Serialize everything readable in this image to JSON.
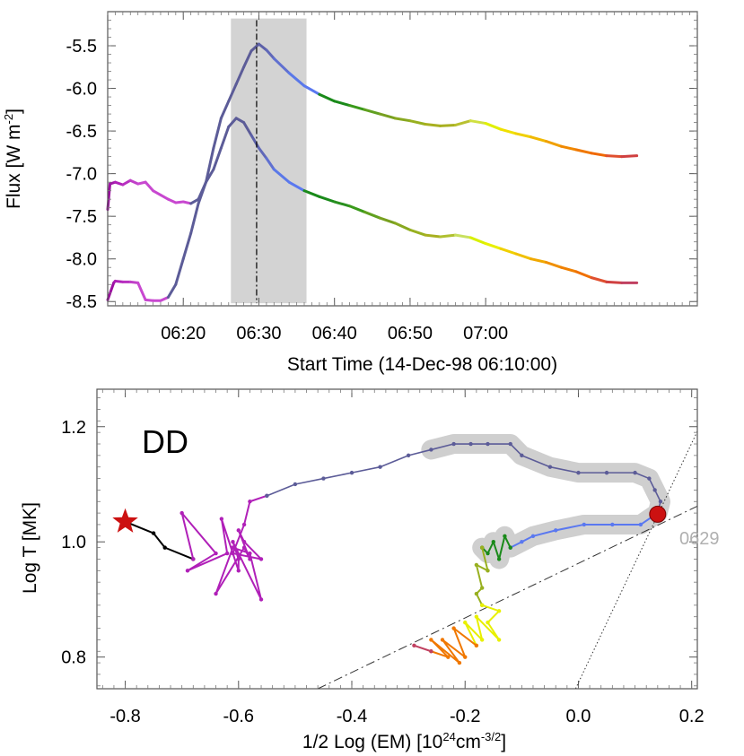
{
  "chart_data": [
    {
      "type": "line",
      "xlabel": "Start Time (14-Dec-98 06:10:00)",
      "ylabel_main": "Flux [W m",
      "ylabel_sup": "-2",
      "ylabel_close": "]",
      "xlim": [
        0,
        78
      ],
      "ylim": [
        -8.55,
        -5.1
      ],
      "x_tick_values": [
        10,
        20,
        30,
        40,
        50
      ],
      "x_tick_labels": [
        "06:20",
        "06:30",
        "06:40",
        "06:50",
        "07:00"
      ],
      "y_tick_values": [
        -5.5,
        -6.0,
        -6.5,
        -7.0,
        -7.5,
        -8.0,
        -8.5
      ],
      "y_tick_labels": [
        "-5.5",
        "-6.0",
        "-6.5",
        "-7.0",
        "-7.5",
        "-8.0",
        "-8.5"
      ],
      "shaded_interval": [
        16.3,
        26.3
      ],
      "vline_x": 19.7,
      "colors": [
        "#9c0fa0",
        "#b238c0",
        "#5c5c98",
        "#6060b8",
        "#5a78f0",
        "#1a8a1a",
        "#3a9a1a",
        "#88b020",
        "#b8c820",
        "#ccf060",
        "#f0f000",
        "#f0b000",
        "#f07800",
        "#c04060"
      ],
      "series": [
        {
          "points": [
            [
              0,
              -7.42
            ],
            [
              0.3,
              -7.12
            ],
            [
              1,
              -7.1
            ],
            [
              2,
              -7.13
            ],
            [
              3,
              -7.08
            ],
            [
              4,
              -7.12
            ],
            [
              5,
              -7.1
            ],
            [
              6,
              -7.2
            ],
            [
              7,
              -7.25
            ],
            [
              8,
              -7.3
            ],
            [
              9,
              -7.34
            ],
            [
              10,
              -7.33
            ],
            [
              11,
              -7.35
            ],
            [
              12,
              -7.3
            ],
            [
              13,
              -7.1
            ],
            [
              14,
              -6.7
            ],
            [
              15,
              -6.35
            ],
            [
              16,
              -6.15
            ],
            [
              17,
              -5.95
            ],
            [
              18,
              -5.75
            ],
            [
              19,
              -5.56
            ],
            [
              20,
              -5.48
            ],
            [
              21,
              -5.55
            ],
            [
              22,
              -5.65
            ],
            [
              24,
              -5.82
            ],
            [
              26,
              -5.97
            ],
            [
              28,
              -6.07
            ],
            [
              30,
              -6.15
            ],
            [
              32,
              -6.2
            ],
            [
              34,
              -6.25
            ],
            [
              36,
              -6.3
            ],
            [
              38,
              -6.35
            ],
            [
              40,
              -6.38
            ],
            [
              42,
              -6.42
            ],
            [
              44,
              -6.44
            ],
            [
              46,
              -6.43
            ],
            [
              48,
              -6.38
            ],
            [
              50,
              -6.41
            ],
            [
              52,
              -6.48
            ],
            [
              54,
              -6.53
            ],
            [
              56,
              -6.57
            ],
            [
              58,
              -6.62
            ],
            [
              60,
              -6.68
            ],
            [
              62,
              -6.72
            ],
            [
              64,
              -6.76
            ],
            [
              66,
              -6.79
            ],
            [
              68,
              -6.8
            ],
            [
              70,
              -6.79
            ]
          ],
          "colors": [
            "#9c0fa0",
            "#a018a8",
            "#b020b8",
            "#b830c0",
            "#c040c8",
            "#c848d0",
            "#c848d0",
            "#c848d0",
            "#c848d0",
            "#c848d0",
            "#c848d0",
            "#c848d0",
            "#5c5c98",
            "#5c5c98",
            "#5c5c98",
            "#5c5c98",
            "#5c5c98",
            "#5c5c98",
            "#5c5c98",
            "#5c5c98",
            "#5c5c98",
            "#5c60a8",
            "#6068b8",
            "#6070d0",
            "#5a78e8",
            "#5a78f0",
            "#1a8a1a",
            "#1a8a1a",
            "#3a9a1a",
            "#60a020",
            "#78a020",
            "#88a820",
            "#98b020",
            "#a8b020",
            "#a8b020",
            "#b8c030",
            "#d0e040",
            "#e0f000",
            "#f0e000",
            "#f0d000",
            "#f0b800",
            "#f0a000",
            "#f08800",
            "#f07800",
            "#f06800",
            "#e05030",
            "#d04040",
            "#c04060"
          ]
        },
        {
          "points": [
            [
              0,
              -8.48
            ],
            [
              0.8,
              -8.28
            ],
            [
              1,
              -8.26
            ],
            [
              2,
              -8.27
            ],
            [
              3,
              -8.27
            ],
            [
              4,
              -8.28
            ],
            [
              5,
              -8.48
            ],
            [
              6,
              -8.49
            ],
            [
              7,
              -8.49
            ],
            [
              8,
              -8.45
            ],
            [
              9,
              -8.3
            ],
            [
              10,
              -8.0
            ],
            [
              11,
              -7.7
            ],
            [
              12,
              -7.35
            ],
            [
              13,
              -7.1
            ],
            [
              14,
              -6.95
            ],
            [
              15,
              -6.7
            ],
            [
              16,
              -6.45
            ],
            [
              17,
              -6.35
            ],
            [
              18,
              -6.4
            ],
            [
              19,
              -6.55
            ],
            [
              20,
              -6.7
            ],
            [
              21,
              -6.82
            ],
            [
              22,
              -6.95
            ],
            [
              24,
              -7.1
            ],
            [
              26,
              -7.2
            ],
            [
              28,
              -7.27
            ],
            [
              30,
              -7.33
            ],
            [
              32,
              -7.38
            ],
            [
              34,
              -7.45
            ],
            [
              36,
              -7.52
            ],
            [
              38,
              -7.58
            ],
            [
              40,
              -7.66
            ],
            [
              42,
              -7.72
            ],
            [
              44,
              -7.74
            ],
            [
              46,
              -7.72
            ],
            [
              48,
              -7.75
            ],
            [
              50,
              -7.82
            ],
            [
              52,
              -7.88
            ],
            [
              54,
              -7.94
            ],
            [
              56,
              -8.0
            ],
            [
              58,
              -8.04
            ],
            [
              60,
              -8.1
            ],
            [
              62,
              -8.15
            ],
            [
              64,
              -8.22
            ],
            [
              66,
              -8.27
            ],
            [
              68,
              -8.28
            ],
            [
              70,
              -8.28
            ]
          ],
          "colors": [
            "#9c0fa0",
            "#a018a8",
            "#b020b8",
            "#b830c0",
            "#c040c8",
            "#c848d0",
            "#c848d0",
            "#c848d0",
            "#c848d0",
            "#5c5c98",
            "#5c5c98",
            "#5c5c98",
            "#5c5c98",
            "#5c5c98",
            "#5c5c98",
            "#5c5c98",
            "#5c5c98",
            "#5c5c98",
            "#5c5c98",
            "#5c5c98",
            "#5c60a8",
            "#6068b8",
            "#6070d0",
            "#5a78e8",
            "#5a78f0",
            "#1a8a1a",
            "#1a8a1a",
            "#2a9020",
            "#3a9a1a",
            "#60a020",
            "#78a020",
            "#88a820",
            "#98b020",
            "#a8b020",
            "#b0c030",
            "#c8e060",
            "#d8f000",
            "#e8f000",
            "#f0d000",
            "#f0c000",
            "#f0a800",
            "#f09000",
            "#f08000",
            "#f07000",
            "#e05030",
            "#d04040",
            "#c04060"
          ]
        }
      ]
    },
    {
      "type": "scatter",
      "panel_label": "DD",
      "time_label": "0629",
      "xlabel_main": "1/2 Log (EM) [10",
      "xlabel_sup1": "24",
      "xlabel_mid": "cm",
      "xlabel_sup2": "-3/2",
      "xlabel_close": "]",
      "ylabel": "Log T [MK]",
      "xlim": [
        -0.85,
        0.21
      ],
      "ylim": [
        0.745,
        1.265
      ],
      "x_tick_values": [
        -0.8,
        -0.6,
        -0.4,
        -0.2,
        0.0,
        0.2
      ],
      "x_tick_labels": [
        "-0.8",
        "-0.6",
        "-0.4",
        "-0.2",
        "0.0",
        "0.2"
      ],
      "y_tick_values": [
        0.8,
        1.0,
        1.2
      ],
      "y_tick_labels": [
        "0.8",
        "1.0",
        "1.2"
      ],
      "start_marker": [
        -0.8,
        1.035
      ],
      "peak_marker": [
        0.14,
        1.048
      ],
      "dashed_line": [
        [
          -0.46,
          0.745
        ],
        [
          0.21,
          1.062
        ]
      ],
      "dotted_line": [
        [
          -0.005,
          0.745
        ],
        [
          0.21,
          1.192
        ]
      ],
      "track": [
        {
          "color": "#000000",
          "points": [
            [
              -0.8,
              1.035
            ],
            [
              -0.75,
              1.015
            ],
            [
              -0.73,
              0.99
            ],
            [
              -0.68,
              0.97
            ]
          ]
        },
        {
          "color": "#b020b8",
          "points": [
            [
              -0.68,
              0.97
            ],
            [
              -0.7,
              1.05
            ],
            [
              -0.64,
              0.98
            ],
            [
              -0.69,
              0.95
            ],
            [
              -0.62,
              0.98
            ],
            [
              -0.63,
              1.04
            ],
            [
              -0.6,
              0.95
            ],
            [
              -0.6,
              0.97
            ],
            [
              -0.61,
              1.0
            ],
            [
              -0.56,
              0.9
            ],
            [
              -0.58,
              0.98
            ],
            [
              -0.61,
              0.99
            ],
            [
              -0.64,
              0.91
            ],
            [
              -0.59,
              0.99
            ],
            [
              -0.58,
              0.97
            ],
            [
              -0.6,
              1.02
            ],
            [
              -0.59,
              1.0
            ],
            [
              -0.56,
              0.97
            ],
            [
              -0.61,
              0.98
            ],
            [
              -0.59,
              1.03
            ],
            [
              -0.58,
              1.07
            ],
            [
              -0.55,
              1.08
            ]
          ]
        },
        {
          "color": "#5c5c98",
          "points": [
            [
              -0.55,
              1.08
            ],
            [
              -0.5,
              1.1
            ],
            [
              -0.45,
              1.11
            ],
            [
              -0.4,
              1.12
            ],
            [
              -0.35,
              1.13
            ],
            [
              -0.3,
              1.15
            ],
            [
              -0.26,
              1.16
            ],
            [
              -0.22,
              1.17
            ],
            [
              -0.19,
              1.17
            ],
            [
              -0.16,
              1.17
            ],
            [
              -0.12,
              1.17
            ],
            [
              -0.1,
              1.15
            ],
            [
              -0.05,
              1.13
            ],
            [
              0.0,
              1.12
            ],
            [
              0.05,
              1.12
            ],
            [
              0.1,
              1.12
            ],
            [
              0.125,
              1.11
            ],
            [
              0.135,
              1.09
            ],
            [
              0.145,
              1.07
            ],
            [
              0.14,
              1.05
            ]
          ]
        },
        {
          "color": "#5a78f0",
          "points": [
            [
              0.14,
              1.05
            ],
            [
              0.11,
              1.03
            ],
            [
              0.06,
              1.03
            ],
            [
              0.01,
              1.03
            ],
            [
              -0.04,
              1.02
            ],
            [
              -0.08,
              1.01
            ],
            [
              -0.1,
              1.0
            ],
            [
              -0.12,
              0.99
            ]
          ]
        },
        {
          "color": "#1a8a1a",
          "points": [
            [
              -0.12,
              0.99
            ],
            [
              -0.13,
              1.01
            ],
            [
              -0.14,
              0.97
            ],
            [
              -0.15,
              1.0
            ],
            [
              -0.16,
              0.98
            ],
            [
              -0.17,
              0.99
            ]
          ]
        },
        {
          "color": "#98b020",
          "points": [
            [
              -0.17,
              0.99
            ],
            [
              -0.16,
              0.95
            ],
            [
              -0.18,
              0.96
            ],
            [
              -0.17,
              0.92
            ],
            [
              -0.18,
              0.91
            ],
            [
              -0.17,
              0.89
            ]
          ]
        },
        {
          "color": "#e8f000",
          "points": [
            [
              -0.17,
              0.89
            ],
            [
              -0.14,
              0.88
            ],
            [
              -0.16,
              0.86
            ],
            [
              -0.14,
              0.83
            ],
            [
              -0.18,
              0.87
            ],
            [
              -0.17,
              0.83
            ],
            [
              -0.2,
              0.86
            ],
            [
              -0.18,
              0.82
            ]
          ]
        },
        {
          "color": "#f07800",
          "points": [
            [
              -0.18,
              0.82
            ],
            [
              -0.22,
              0.85
            ],
            [
              -0.2,
              0.8
            ],
            [
              -0.24,
              0.83
            ],
            [
              -0.21,
              0.79
            ],
            [
              -0.26,
              0.83
            ],
            [
              -0.23,
              0.8
            ],
            [
              -0.26,
              0.81
            ]
          ]
        },
        {
          "color": "#c04060",
          "points": [
            [
              -0.26,
              0.81
            ],
            [
              -0.29,
              0.82
            ]
          ]
        }
      ],
      "halo_color": "#cfcfcf",
      "start_marker_color": "#cc1111",
      "peak_marker_color": "#cc1111"
    }
  ]
}
